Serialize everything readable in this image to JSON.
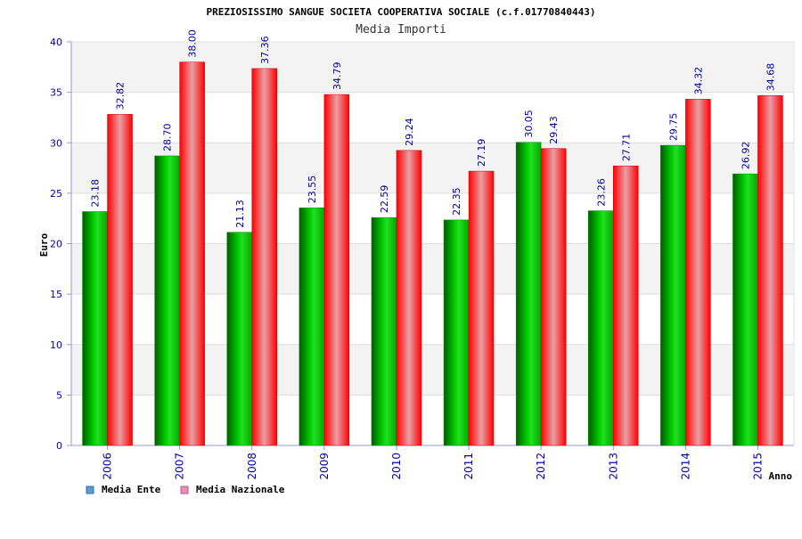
{
  "chart_data": {
    "type": "bar",
    "title": "PREZIOSISSIMO SANGUE SOCIETA COOPERATIVA SOCIALE (c.f.01770840443)",
    "subtitle": "Media Importi",
    "xlabel": "Anno",
    "ylabel": "Euro",
    "ylim": [
      0,
      40
    ],
    "yticks": [
      0,
      5,
      10,
      15,
      20,
      25,
      30,
      35,
      40
    ],
    "grid": true,
    "legend_position": "bottom-left",
    "categories": [
      "2006",
      "2007",
      "2008",
      "2009",
      "2010",
      "2011",
      "2012",
      "2013",
      "2014",
      "2015"
    ],
    "series": [
      {
        "name": "Media Ente",
        "values": [
          23.18,
          28.7,
          21.13,
          23.55,
          22.59,
          22.35,
          30.05,
          23.26,
          29.75,
          26.92
        ],
        "labels": [
          "23.18",
          "28.70",
          "21.13",
          "23.55",
          "22.59",
          "22.35",
          "30.05",
          "23.26",
          "29.75",
          "26.92"
        ],
        "color": "#00b000",
        "legend_color": "#5b9bd5"
      },
      {
        "name": "Media Nazionale",
        "values": [
          32.82,
          38.0,
          37.36,
          34.79,
          29.24,
          27.19,
          29.43,
          27.71,
          34.32,
          34.68
        ],
        "labels": [
          "32.82",
          "38.00",
          "37.36",
          "34.79",
          "29.24",
          "27.19",
          "29.43",
          "27.71",
          "34.32",
          "34.68"
        ],
        "color": "#ee1111",
        "legend_color": "#e38fb8"
      }
    ],
    "colors": {
      "title_text": "#000000",
      "subtitle_text": "#333333",
      "tick_text": "#0000aa",
      "value_label_text": "#0000aa",
      "axis_line": "#9999cc",
      "band_light": "#f3f3f3",
      "band_white": "#ffffff",
      "gridline": "#dddddd"
    }
  }
}
